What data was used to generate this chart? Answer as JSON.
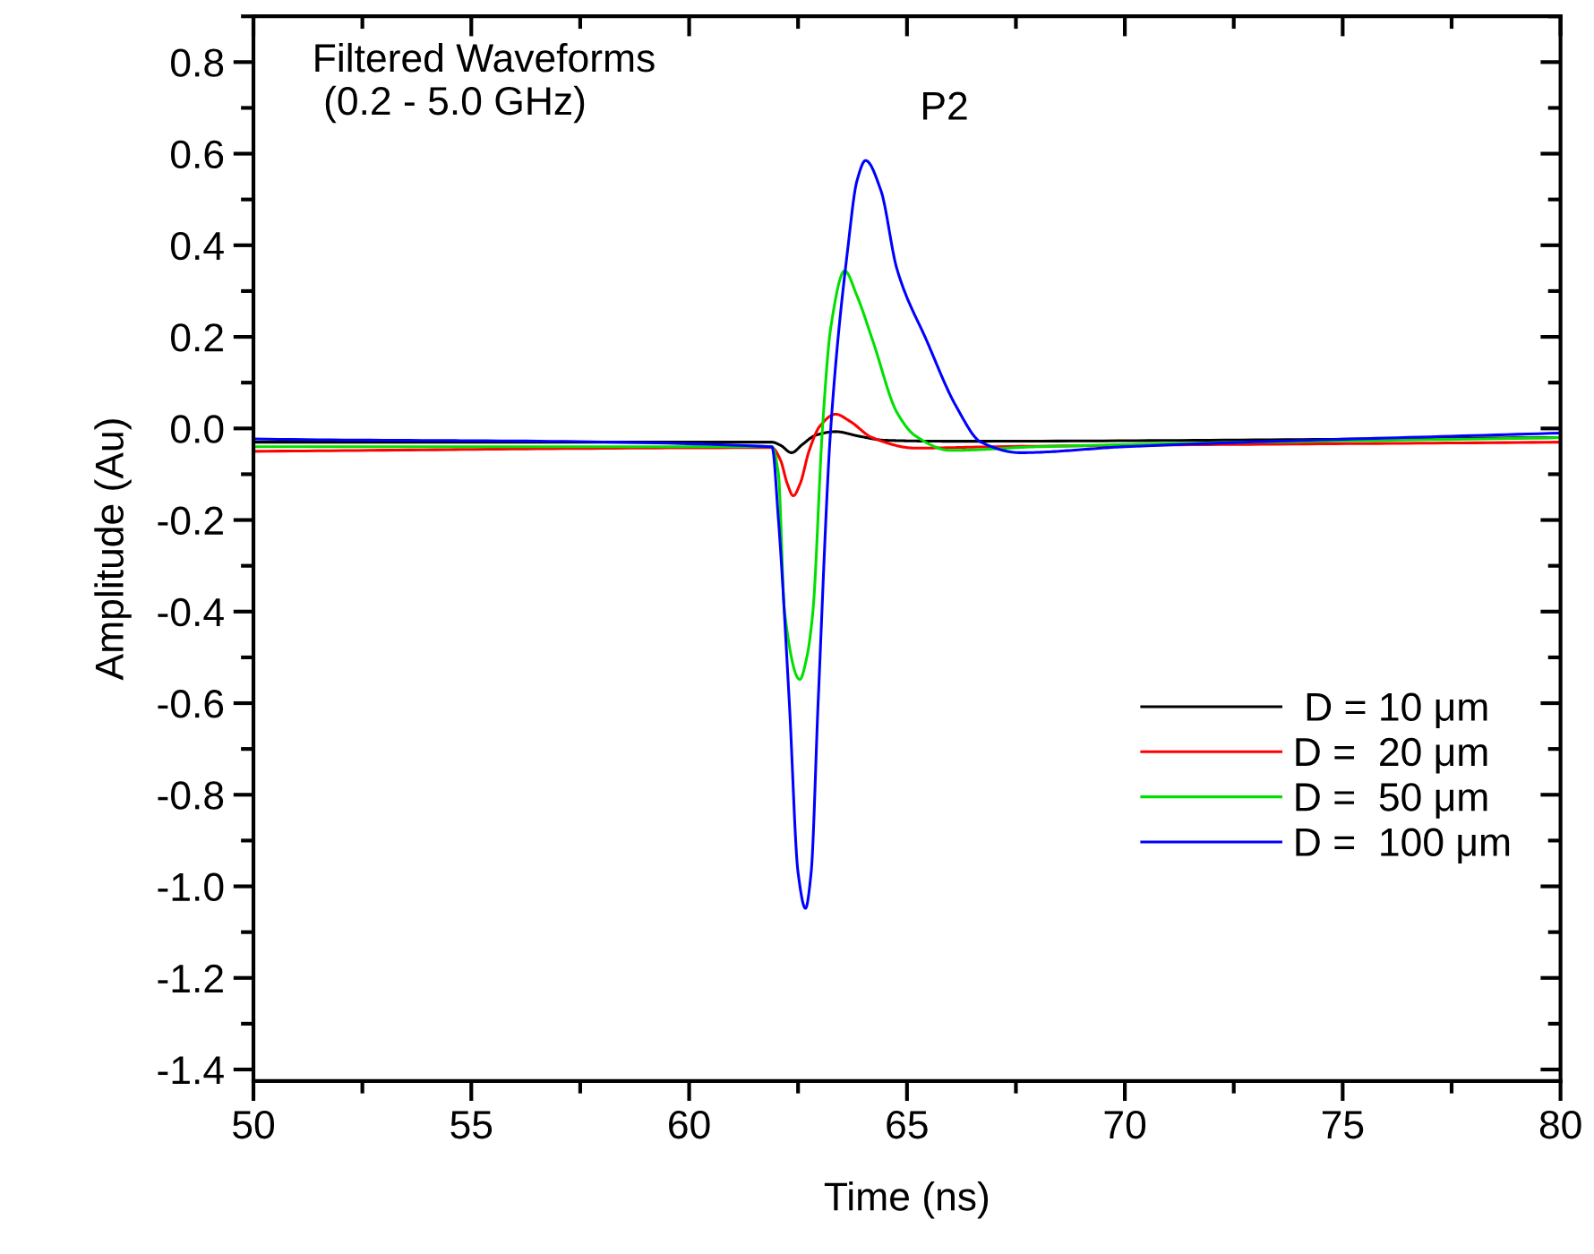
{
  "chart_data": {
    "type": "line",
    "xlabel": "Time (ns)",
    "ylabel": "Amplitude (Au)",
    "xlim": [
      50,
      80
    ],
    "xticks": [
      50,
      55,
      60,
      65,
      70,
      75,
      80
    ],
    "ylim": [
      -1.425,
      0.9
    ],
    "yticks": [
      {
        "value": -1.4,
        "label": "-1.4"
      },
      {
        "value": -1.2,
        "label": "-1.2"
      },
      {
        "value": -1.0,
        "label": "-1.0"
      },
      {
        "value": -0.8,
        "label": "-0.8"
      },
      {
        "value": -0.6,
        "label": "-0.6"
      },
      {
        "value": -0.4,
        "label": "-0.4"
      },
      {
        "value": -0.2,
        "label": "-0.2"
      },
      {
        "value": 0.0,
        "label": "0.0"
      },
      {
        "value": 0.2,
        "label": "0.2"
      },
      {
        "value": 0.4,
        "label": "0.4"
      },
      {
        "value": 0.6,
        "label": "0.6"
      },
      {
        "value": 0.8,
        "label": "0.8"
      }
    ],
    "grid": false,
    "legend": "bottom right",
    "marker": "none",
    "line_style": "solid",
    "annotations": [
      "Filtered Waveforms\n (0.2 - 5.0 GHz)",
      "P2"
    ],
    "series": [
      {
        "name": " D = 10 μm",
        "color": "#000000",
        "x": [
          50,
          61.9,
          62.1,
          62.35,
          62.6,
          62.9,
          63.36,
          63.9,
          64.5,
          66,
          80
        ],
        "values": [
          -0.03,
          -0.03,
          -0.037,
          -0.053,
          -0.035,
          -0.015,
          -0.007,
          -0.017,
          -0.026,
          -0.028,
          -0.02
        ]
      },
      {
        "name": "D =  20 μm",
        "color": "#ff0000",
        "x": [
          50,
          61.9,
          62.1,
          62.25,
          62.39,
          62.55,
          62.75,
          63.0,
          63.36,
          63.7,
          64.2,
          65.2,
          67,
          80
        ],
        "values": [
          -0.05,
          -0.042,
          -0.07,
          -0.12,
          -0.147,
          -0.12,
          -0.05,
          0.005,
          0.031,
          0.015,
          -0.02,
          -0.043,
          -0.04,
          -0.03
        ]
      },
      {
        "name": "D =  50 μm",
        "color": "#00e000",
        "x": [
          50,
          61.9,
          62.05,
          62.19,
          62.54,
          62.7,
          62.84,
          63.06,
          63.25,
          63.57,
          63.85,
          64.22,
          64.77,
          65.19,
          66.0,
          68,
          80
        ],
        "values": [
          -0.04,
          -0.04,
          -0.1,
          -0.4,
          -0.548,
          -0.5,
          -0.4,
          0.0,
          0.22,
          0.344,
          0.29,
          0.19,
          0.035,
          -0.016,
          -0.048,
          -0.04,
          -0.02
        ]
      },
      {
        "name": "D =  100 μm",
        "color": "#0000ff",
        "x": [
          50,
          61.9,
          62.05,
          62.3,
          62.5,
          62.67,
          62.8,
          62.96,
          63.25,
          63.65,
          63.85,
          64.05,
          64.4,
          64.77,
          65.46,
          66.13,
          66.7,
          67.6,
          70,
          80
        ],
        "values": [
          -0.023,
          -0.04,
          -0.2,
          -0.6,
          -0.97,
          -1.048,
          -0.97,
          -0.6,
          0.0,
          0.4,
          0.54,
          0.585,
          0.52,
          0.348,
          0.19,
          0.048,
          -0.03,
          -0.053,
          -0.04,
          -0.01
        ]
      }
    ]
  }
}
